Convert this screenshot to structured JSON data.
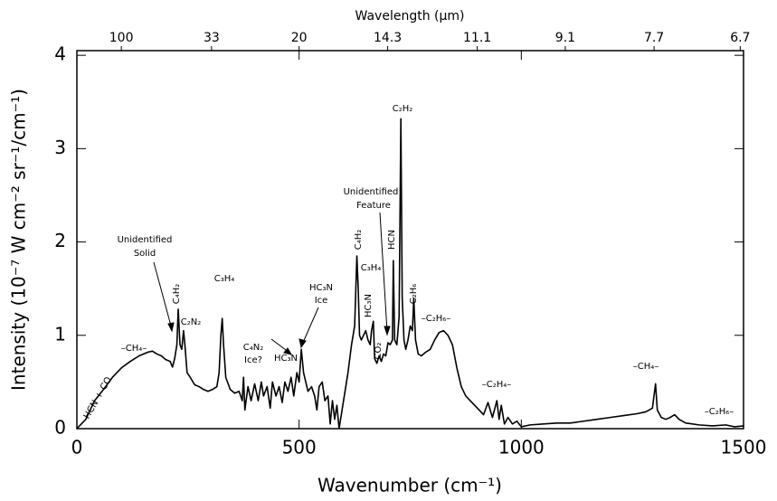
{
  "chart_data": {
    "type": "line",
    "title": "Wavelength (μm)",
    "xlabel": "Wavenumber (cm⁻¹)",
    "ylabel": "Intensity (10⁻⁷ W cm⁻² sr⁻¹/cm⁻¹)",
    "xlim": [
      0,
      1500
    ],
    "ylim": [
      0,
      4.05
    ],
    "xticks": [
      0,
      500,
      1000,
      1500
    ],
    "yticks": [
      0,
      1,
      2,
      3,
      4
    ],
    "x2_scale": "reciprocal",
    "x2ticks": [
      100,
      33,
      20,
      14.3,
      11.1,
      9.1,
      7.7,
      6.7
    ],
    "color": "#000000",
    "x": [
      0,
      10,
      20,
      30,
      40,
      60,
      80,
      100,
      120,
      140,
      160,
      170,
      180,
      190,
      200,
      210,
      215,
      220,
      225,
      228,
      232,
      236,
      240,
      243,
      248,
      255,
      265,
      275,
      285,
      295,
      305,
      315,
      320,
      324,
      327,
      330,
      335,
      345,
      355,
      365,
      372,
      375,
      378,
      385,
      392,
      400,
      408,
      415,
      420,
      428,
      435,
      440,
      448,
      455,
      462,
      468,
      475,
      482,
      488,
      495,
      500,
      505,
      510,
      515,
      520,
      528,
      535,
      540,
      545,
      552,
      558,
      565,
      570,
      575,
      580,
      585,
      590,
      600,
      610,
      618,
      625,
      630,
      633,
      636,
      640,
      645,
      650,
      655,
      660,
      663,
      667,
      670,
      675,
      680,
      685,
      690,
      695,
      700,
      705,
      710,
      712,
      715,
      720,
      725,
      729,
      732,
      736,
      740,
      745,
      750,
      755,
      758,
      762,
      768,
      775,
      785,
      795,
      805,
      815,
      825,
      835,
      845,
      855,
      865,
      875,
      885,
      895,
      905,
      915,
      925,
      935,
      945,
      950,
      955,
      962,
      970,
      980,
      990,
      1000,
      1020,
      1050,
      1080,
      1110,
      1140,
      1170,
      1200,
      1230,
      1260,
      1280,
      1295,
      1302,
      1306,
      1315,
      1325,
      1335,
      1345,
      1355,
      1370,
      1400,
      1430,
      1460,
      1480,
      1500
    ],
    "y": [
      0,
      0.05,
      0.1,
      0.2,
      0.3,
      0.42,
      0.55,
      0.65,
      0.72,
      0.78,
      0.82,
      0.83,
      0.8,
      0.78,
      0.74,
      0.72,
      0.66,
      0.75,
      0.9,
      1.28,
      0.9,
      0.85,
      1.05,
      0.9,
      0.6,
      0.55,
      0.47,
      0.45,
      0.42,
      0.4,
      0.42,
      0.45,
      0.6,
      1.0,
      1.18,
      0.9,
      0.55,
      0.42,
      0.38,
      0.4,
      0.3,
      0.55,
      0.2,
      0.45,
      0.3,
      0.48,
      0.3,
      0.5,
      0.35,
      0.45,
      0.22,
      0.5,
      0.35,
      0.45,
      0.28,
      0.5,
      0.4,
      0.55,
      0.35,
      0.6,
      0.5,
      0.85,
      0.6,
      0.5,
      0.4,
      0.45,
      0.35,
      0.2,
      0.45,
      0.5,
      0.3,
      0.35,
      0.05,
      0.3,
      0.1,
      0.25,
      0.0,
      0.3,
      0.6,
      0.9,
      1.1,
      1.85,
      1.5,
      1.0,
      0.95,
      1.0,
      1.05,
      0.95,
      0.9,
      1.05,
      1.15,
      0.75,
      0.7,
      0.78,
      0.72,
      0.8,
      0.78,
      0.92,
      0.9,
      0.95,
      1.8,
      0.95,
      0.9,
      1.2,
      3.32,
      1.4,
      0.95,
      0.85,
      0.95,
      1.1,
      1.05,
      1.4,
      0.95,
      0.8,
      0.78,
      0.82,
      0.85,
      0.95,
      1.03,
      1.05,
      1.0,
      0.9,
      0.65,
      0.45,
      0.35,
      0.3,
      0.25,
      0.2,
      0.15,
      0.28,
      0.12,
      0.3,
      0.1,
      0.25,
      0.05,
      0.12,
      0.05,
      0.08,
      0.02,
      0.04,
      0.05,
      0.06,
      0.06,
      0.08,
      0.1,
      0.12,
      0.14,
      0.16,
      0.18,
      0.22,
      0.48,
      0.2,
      0.12,
      0.1,
      0.12,
      0.15,
      0.1,
      0.06,
      0.04,
      0.03,
      0.04,
      0.02,
      0.03
    ],
    "annotations": [
      "HCN + CO",
      "–CH₄–",
      "Unidentified",
      "Solid",
      "C₄H₂",
      "C₂N₂",
      "C₃H₄",
      "C₄N₂",
      "Ice?",
      "HC₃N",
      "HC₃N",
      "Ice",
      "C₄H₂",
      "C₃H₄",
      "HC₃N",
      "CO₂",
      "Unidentified",
      "Feature",
      "HCN",
      "C₂H₂",
      "C₂H₆",
      "–C₂H₆–",
      "–C₂H₄–",
      "–CH₄–",
      "–C₂H₆–"
    ]
  }
}
